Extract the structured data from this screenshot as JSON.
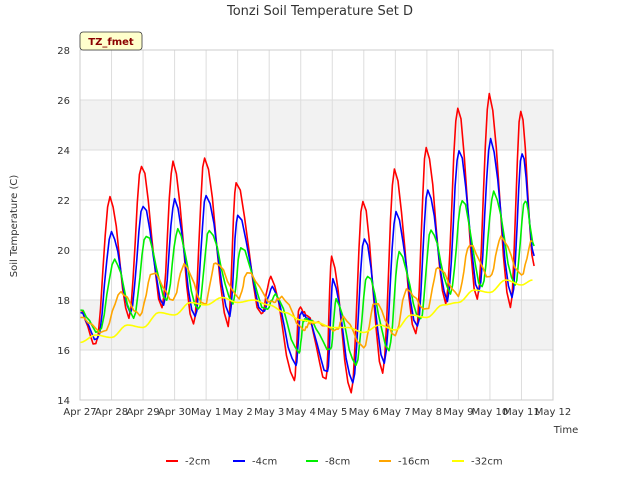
{
  "chart_data": {
    "type": "line",
    "title": "Tonzi Soil Temperature Set D",
    "xlabel": "Time",
    "ylabel": "Soil Temperature (C)",
    "tag": "TZ_fmet",
    "x_ticks": [
      "Apr 27",
      "Apr 28",
      "Apr 29",
      "Apr 30",
      "May 1",
      "May 2",
      "May 3",
      "May 4",
      "May 5",
      "May 6",
      "May 7",
      "May 8",
      "May 9",
      "May 10",
      "May 11",
      "May 12"
    ],
    "y_ticks": [
      14,
      16,
      18,
      20,
      22,
      24,
      26,
      28
    ],
    "ylim": [
      14,
      28
    ],
    "xlim": [
      0,
      15
    ],
    "grid": true,
    "band_ranges": [
      [
        16,
        18
      ],
      [
        24,
        26
      ]
    ],
    "legend_position": "bottom",
    "colors": {
      "-2cm": "#ff0000",
      "-4cm": "#0000ff",
      "-8cm": "#00ee00",
      "-16cm": "#ffa500",
      "-32cm": "#ffff00"
    },
    "series": [
      {
        "name": "-2cm",
        "color": "#ff0000",
        "width": 1.6,
        "peaks": [
          [
            0.0,
            17.6
          ],
          [
            0.5,
            16.2
          ],
          [
            0.95,
            22.1
          ],
          [
            1.55,
            17.3
          ],
          [
            1.95,
            23.4
          ],
          [
            2.6,
            17.7
          ],
          [
            2.95,
            23.5
          ],
          [
            3.6,
            17.0
          ],
          [
            3.95,
            23.7
          ],
          [
            4.7,
            17.0
          ],
          [
            4.95,
            22.7
          ],
          [
            5.75,
            17.4
          ],
          [
            6.05,
            18.9
          ],
          [
            6.8,
            14.8
          ],
          [
            6.95,
            17.7
          ],
          [
            7.2,
            17.4
          ],
          [
            7.8,
            14.8
          ],
          [
            7.98,
            19.7
          ],
          [
            8.6,
            14.3
          ],
          [
            8.97,
            22.0
          ],
          [
            9.6,
            15.1
          ],
          [
            9.97,
            23.2
          ],
          [
            10.65,
            16.6
          ],
          [
            10.98,
            24.1
          ],
          [
            11.6,
            17.9
          ],
          [
            11.98,
            25.7
          ],
          [
            12.6,
            18.0
          ],
          [
            12.98,
            26.2
          ],
          [
            13.65,
            17.7
          ],
          [
            13.98,
            25.6
          ],
          [
            14.4,
            19.4
          ]
        ]
      },
      {
        "name": "-4cm",
        "color": "#0000ff",
        "width": 1.6,
        "peaks": [
          [
            0.0,
            17.5
          ],
          [
            0.55,
            16.4
          ],
          [
            1.0,
            20.7
          ],
          [
            1.6,
            17.5
          ],
          [
            2.0,
            21.8
          ],
          [
            2.65,
            17.8
          ],
          [
            3.0,
            22.0
          ],
          [
            3.65,
            17.3
          ],
          [
            4.0,
            22.2
          ],
          [
            4.75,
            17.4
          ],
          [
            5.0,
            21.4
          ],
          [
            5.8,
            17.5
          ],
          [
            6.1,
            18.5
          ],
          [
            6.85,
            15.4
          ],
          [
            7.0,
            17.5
          ],
          [
            7.2,
            17.3
          ],
          [
            7.85,
            15.1
          ],
          [
            8.02,
            18.8
          ],
          [
            8.65,
            14.7
          ],
          [
            9.02,
            20.5
          ],
          [
            9.65,
            15.5
          ],
          [
            10.02,
            21.5
          ],
          [
            10.7,
            16.9
          ],
          [
            11.03,
            22.4
          ],
          [
            11.65,
            18.0
          ],
          [
            12.02,
            24.0
          ],
          [
            12.65,
            18.3
          ],
          [
            13.02,
            24.4
          ],
          [
            13.7,
            18.1
          ],
          [
            14.02,
            23.9
          ],
          [
            14.4,
            19.8
          ]
        ]
      },
      {
        "name": "-8cm",
        "color": "#00ee00",
        "width": 1.6,
        "peaks": [
          [
            0.0,
            17.6
          ],
          [
            0.6,
            16.7
          ],
          [
            1.1,
            19.6
          ],
          [
            1.7,
            17.3
          ],
          [
            2.1,
            20.6
          ],
          [
            2.75,
            18.0
          ],
          [
            3.1,
            20.8
          ],
          [
            3.75,
            17.6
          ],
          [
            4.1,
            20.8
          ],
          [
            4.85,
            17.9
          ],
          [
            5.1,
            20.1
          ],
          [
            5.9,
            17.6
          ],
          [
            6.2,
            18.2
          ],
          [
            6.95,
            15.9
          ],
          [
            7.1,
            17.2
          ],
          [
            7.25,
            17.2
          ],
          [
            7.95,
            16.0
          ],
          [
            8.12,
            18.0
          ],
          [
            8.75,
            15.4
          ],
          [
            9.12,
            19.0
          ],
          [
            9.8,
            16.0
          ],
          [
            10.12,
            19.9
          ],
          [
            10.8,
            17.2
          ],
          [
            11.13,
            20.8
          ],
          [
            11.75,
            18.3
          ],
          [
            12.12,
            22.0
          ],
          [
            12.75,
            18.5
          ],
          [
            13.12,
            22.3
          ],
          [
            13.8,
            18.6
          ],
          [
            14.12,
            22.0
          ],
          [
            14.4,
            20.2
          ]
        ]
      },
      {
        "name": "-16cm",
        "color": "#ffa500",
        "width": 1.6,
        "peaks": [
          [
            0.0,
            17.3
          ],
          [
            0.75,
            16.7
          ],
          [
            1.3,
            18.3
          ],
          [
            1.9,
            17.4
          ],
          [
            2.3,
            19.1
          ],
          [
            2.95,
            18.0
          ],
          [
            3.3,
            19.4
          ],
          [
            3.95,
            17.8
          ],
          [
            4.3,
            19.5
          ],
          [
            5.05,
            18.1
          ],
          [
            5.3,
            19.1
          ],
          [
            6.1,
            17.9
          ],
          [
            6.4,
            18.1
          ],
          [
            7.1,
            16.8
          ],
          [
            7.3,
            17.1
          ],
          [
            7.45,
            17.1
          ],
          [
            8.15,
            16.8
          ],
          [
            8.35,
            17.3
          ],
          [
            9.0,
            16.1
          ],
          [
            9.35,
            17.9
          ],
          [
            10.0,
            16.6
          ],
          [
            10.35,
            18.4
          ],
          [
            11.0,
            17.6
          ],
          [
            11.35,
            19.3
          ],
          [
            12.0,
            18.2
          ],
          [
            12.35,
            20.2
          ],
          [
            13.0,
            18.9
          ],
          [
            13.35,
            20.5
          ],
          [
            14.0,
            19.0
          ],
          [
            14.35,
            20.4
          ]
        ]
      },
      {
        "name": "-32cm",
        "color": "#ffff00",
        "width": 1.6,
        "peaks": [
          [
            0.0,
            16.3
          ],
          [
            0.5,
            16.6
          ],
          [
            1.0,
            16.5
          ],
          [
            1.5,
            17.0
          ],
          [
            2.0,
            16.9
          ],
          [
            2.5,
            17.5
          ],
          [
            3.0,
            17.4
          ],
          [
            3.5,
            17.9
          ],
          [
            4.0,
            17.8
          ],
          [
            4.5,
            18.1
          ],
          [
            5.0,
            17.9
          ],
          [
            5.5,
            18.0
          ],
          [
            6.0,
            17.8
          ],
          [
            6.5,
            17.5
          ],
          [
            7.0,
            17.2
          ],
          [
            7.5,
            17.1
          ],
          [
            8.0,
            16.9
          ],
          [
            8.5,
            16.9
          ],
          [
            9.0,
            16.7
          ],
          [
            9.5,
            17.0
          ],
          [
            10.0,
            16.8
          ],
          [
            10.5,
            17.4
          ],
          [
            11.0,
            17.3
          ],
          [
            11.5,
            17.8
          ],
          [
            12.0,
            17.9
          ],
          [
            12.5,
            18.4
          ],
          [
            13.0,
            18.3
          ],
          [
            13.5,
            18.8
          ],
          [
            14.0,
            18.6
          ],
          [
            14.35,
            18.8
          ]
        ]
      }
    ]
  }
}
